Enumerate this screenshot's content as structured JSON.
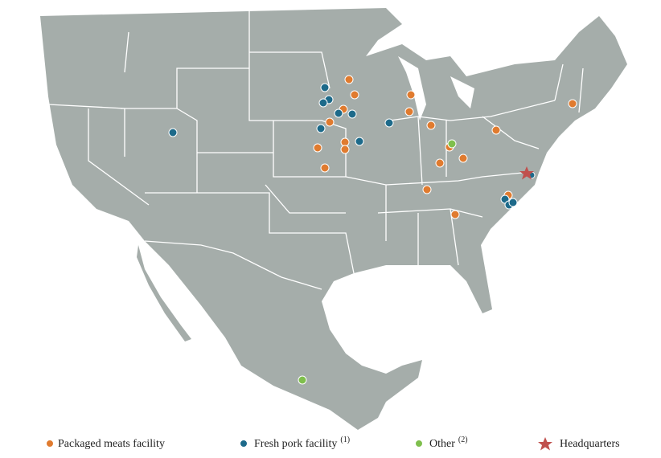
{
  "legend": {
    "items": [
      {
        "label": "Packaged meats facility"
      },
      {
        "label": "Fresh pork facility",
        "note": "(1)"
      },
      {
        "label": "Other",
        "note": "(2)"
      },
      {
        "label": "Headquarters"
      }
    ]
  }
}
